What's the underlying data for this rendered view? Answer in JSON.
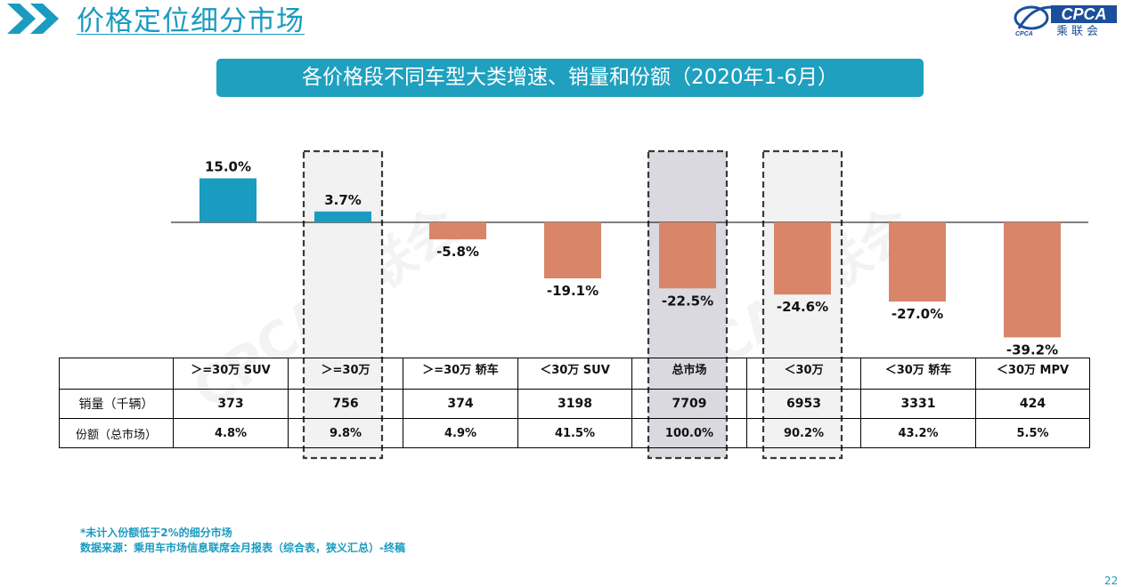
{
  "header": {
    "title": "价格定位细分市场",
    "logo": {
      "brand": "CPCA",
      "sub": "乘联会",
      "small": "CPCA"
    }
  },
  "banner": {
    "text": "各价格段不同车型大类增速、销量和份额（2020年1-6月）"
  },
  "chart_data": {
    "type": "bar",
    "title": "各价格段不同车型大类增速、销量和份额（2020年1-6月）",
    "categories": [
      ">=30万 SUV",
      ">=30万",
      ">=30万 轿车",
      "<30万 SUV",
      "总市场",
      "<30万",
      "<30万 轿车",
      "<30万 MPV"
    ],
    "values": [
      15.0,
      3.7,
      -5.8,
      -19.1,
      -22.5,
      -24.6,
      -27.0,
      -39.2
    ],
    "value_labels": [
      "15.0%",
      "3.7%",
      "-5.8%",
      "-19.1%",
      "-22.5%",
      "-24.6%",
      "-27.0%",
      "-39.2%"
    ],
    "unit": "%",
    "ylim": [
      -40,
      20
    ],
    "positive_color": "#1a9bc0",
    "negative_color": "#d9856a",
    "highlighted_categories": [
      ">=30万",
      "总市场",
      "<30万"
    ],
    "highlight_fill": {
      ">=30万": "#f2f2f2",
      "总市场": "#d9d9df",
      "<30万": "#f2f2f2"
    },
    "grid": false,
    "legend": "none"
  },
  "table": {
    "headers": [
      "",
      "＞=30万 SUV",
      "＞=30万",
      "＞=30万 轿车",
      "＜30万 SUV",
      "总市场",
      "＜30万",
      "＜30万 轿车",
      "＜30万 MPV"
    ],
    "rows": [
      {
        "label": "销量（千辆）",
        "cells": [
          "373",
          "756",
          "374",
          "3198",
          "7709",
          "6953",
          "3331",
          "424"
        ]
      },
      {
        "label": "份额（总市场）",
        "cells": [
          "4.8%",
          "9.8%",
          "4.9%",
          "41.5%",
          "100.0%",
          "90.2%",
          "43.2%",
          "5.5%"
        ]
      }
    ]
  },
  "footnotes": [
    "*未计入份额低于2%的细分市场",
    "数据来源：乘用车市场信息联席会月报表（综合表，狭义汇总）-终稿"
  ],
  "watermark": "CPCA乘联会",
  "page_number": "22",
  "colors": {
    "accent": "#1a9bc0",
    "banner": "#1fa0bf",
    "negative": "#d9856a"
  }
}
